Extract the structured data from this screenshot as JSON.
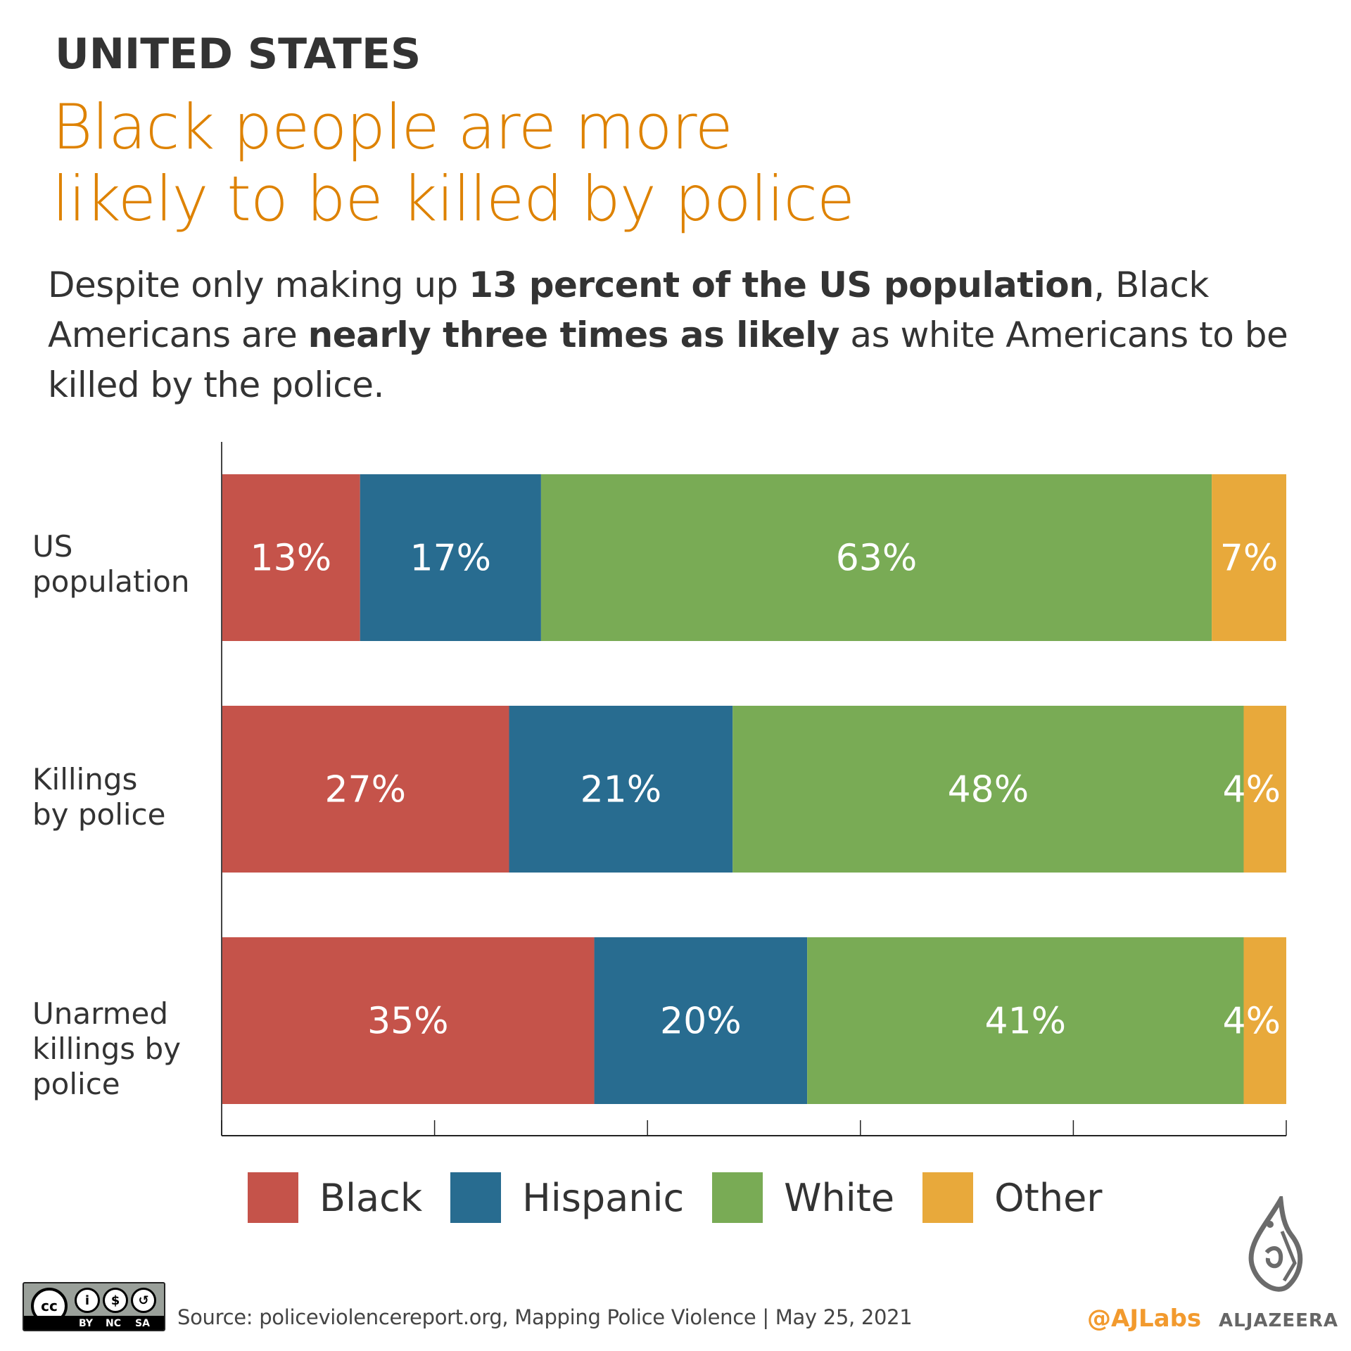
{
  "header": {
    "kicker": "UNITED STATES",
    "title_line1": "Black people are more",
    "title_line2": "likely to be killed by police",
    "subtitle": {
      "part1": "Despite only making up ",
      "bold1": "13 percent of the US population",
      "part2": ", Black Americans are ",
      "bold2": "nearly three times as likely",
      "part3": " as white Americans to be killed by the police."
    }
  },
  "colors": {
    "title": "#DE8200",
    "Black": "#C5534A",
    "Hispanic": "#286C90",
    "White": "#79AB55",
    "Other": "#E8A93B"
  },
  "chart_data": {
    "type": "bar",
    "orientation": "horizontal",
    "stacked": true,
    "title": "Black people are more likely to be killed by police",
    "xlabel": "",
    "ylabel": "",
    "xlim": [
      0,
      100
    ],
    "x_ticks": [
      0,
      20,
      40,
      60,
      80,
      100
    ],
    "x_tick_labels_shown": false,
    "grid": false,
    "legend_position": "bottom",
    "categories": [
      "US population",
      "Killings by police",
      "Unarmed killings by police"
    ],
    "category_label_lines": [
      [
        "US",
        "population"
      ],
      [
        "Killings",
        "by police"
      ],
      [
        "Unarmed",
        "killings by",
        "police"
      ]
    ],
    "series": [
      {
        "name": "Black",
        "values": [
          13,
          27,
          35
        ],
        "labels": [
          "13%",
          "27%",
          "35%"
        ]
      },
      {
        "name": "Hispanic",
        "values": [
          17,
          21,
          20
        ],
        "labels": [
          "17%",
          "21%",
          "20%"
        ]
      },
      {
        "name": "White",
        "values": [
          63,
          48,
          41
        ],
        "labels": [
          "63%",
          "48%",
          "41%"
        ]
      },
      {
        "name": "Other",
        "values": [
          7,
          4,
          4
        ],
        "labels": [
          "7%",
          "4%",
          "4%"
        ]
      }
    ]
  },
  "legend": [
    {
      "label": "Black"
    },
    {
      "label": "Hispanic"
    },
    {
      "label": "White"
    },
    {
      "label": "Other"
    }
  ],
  "footer": {
    "source": "Source: policeviolencereport.org, Mapping Police Violence | May 25, 2021",
    "license_badge": {
      "main": "cc",
      "items": [
        "BY",
        "NC",
        "SA"
      ]
    },
    "credit": "@AJLabs",
    "brand": "ALJAZEERA"
  }
}
